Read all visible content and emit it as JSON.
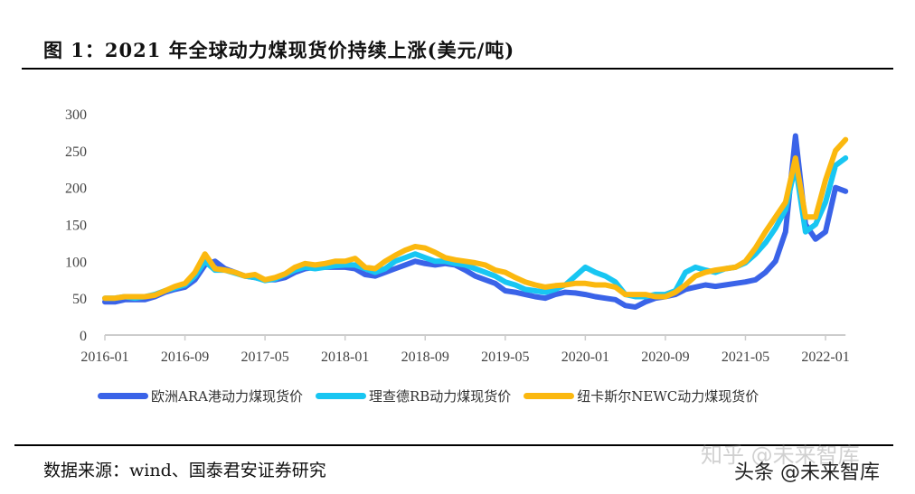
{
  "title": "图  1：2021 年全球动力煤现货价持续上涨(美元/吨)",
  "source": "数据来源：wind、国泰君安证券研究",
  "watermarks": [
    "知乎 @未来智库",
    "头条 @未来智库"
  ],
  "chart_data": {
    "type": "line",
    "title": "",
    "xlabel": "",
    "ylabel": "",
    "ylim": [
      0,
      300
    ],
    "yticks": [
      "0",
      "50",
      "100",
      "150",
      "200",
      "250",
      "300"
    ],
    "xticks": [
      "2016-01",
      "2016-09",
      "2017-05",
      "2018-01",
      "2018-09",
      "2019-05",
      "2020-01",
      "2020-09",
      "2021-05",
      "2022-01"
    ],
    "x_start": "2016-01",
    "x_end": "2022-03",
    "grid": false,
    "legend": "bottom",
    "series": [
      {
        "name": "欧洲ARA港动力煤现货价",
        "color": "#3a63e8",
        "values": [
          45,
          45,
          48,
          48,
          48,
          52,
          58,
          62,
          65,
          75,
          95,
          100,
          90,
          85,
          80,
          78,
          75,
          75,
          78,
          85,
          90,
          92,
          92,
          92,
          92,
          90,
          82,
          80,
          85,
          90,
          95,
          100,
          97,
          95,
          97,
          95,
          88,
          80,
          75,
          70,
          60,
          58,
          55,
          52,
          50,
          55,
          58,
          57,
          55,
          52,
          50,
          48,
          40,
          38,
          45,
          50,
          52,
          55,
          62,
          65,
          68,
          66,
          68,
          70,
          72,
          75,
          85,
          100,
          140,
          270,
          150,
          130,
          140,
          200,
          195
        ]
      },
      {
        "name": "理查德RB动力煤现货价",
        "color": "#18c6f2",
        "values": [
          50,
          50,
          52,
          50,
          52,
          55,
          60,
          64,
          68,
          80,
          100,
          88,
          88,
          84,
          80,
          78,
          74,
          76,
          82,
          88,
          92,
          90,
          92,
          94,
          95,
          95,
          90,
          85,
          90,
          100,
          105,
          110,
          105,
          100,
          100,
          97,
          95,
          90,
          85,
          80,
          72,
          68,
          62,
          60,
          58,
          62,
          68,
          80,
          92,
          85,
          80,
          72,
          55,
          52,
          52,
          55,
          55,
          60,
          85,
          92,
          88,
          85,
          90,
          92,
          98,
          110,
          125,
          145,
          170,
          230,
          140,
          150,
          180,
          230,
          240
        ]
      },
      {
        "name": "纽卡斯尔NEWC动力煤现货价",
        "color": "#fbb80f",
        "values": [
          50,
          50,
          52,
          52,
          52,
          54,
          60,
          66,
          70,
          85,
          110,
          90,
          88,
          85,
          80,
          82,
          75,
          78,
          83,
          92,
          97,
          95,
          97,
          100,
          100,
          104,
          92,
          90,
          100,
          108,
          115,
          120,
          118,
          112,
          105,
          102,
          100,
          98,
          95,
          88,
          85,
          78,
          72,
          68,
          65,
          67,
          68,
          70,
          70,
          68,
          68,
          65,
          55,
          55,
          55,
          52,
          52,
          58,
          68,
          80,
          85,
          88,
          90,
          92,
          100,
          118,
          140,
          160,
          180,
          240,
          160,
          160,
          210,
          250,
          265
        ]
      }
    ]
  }
}
